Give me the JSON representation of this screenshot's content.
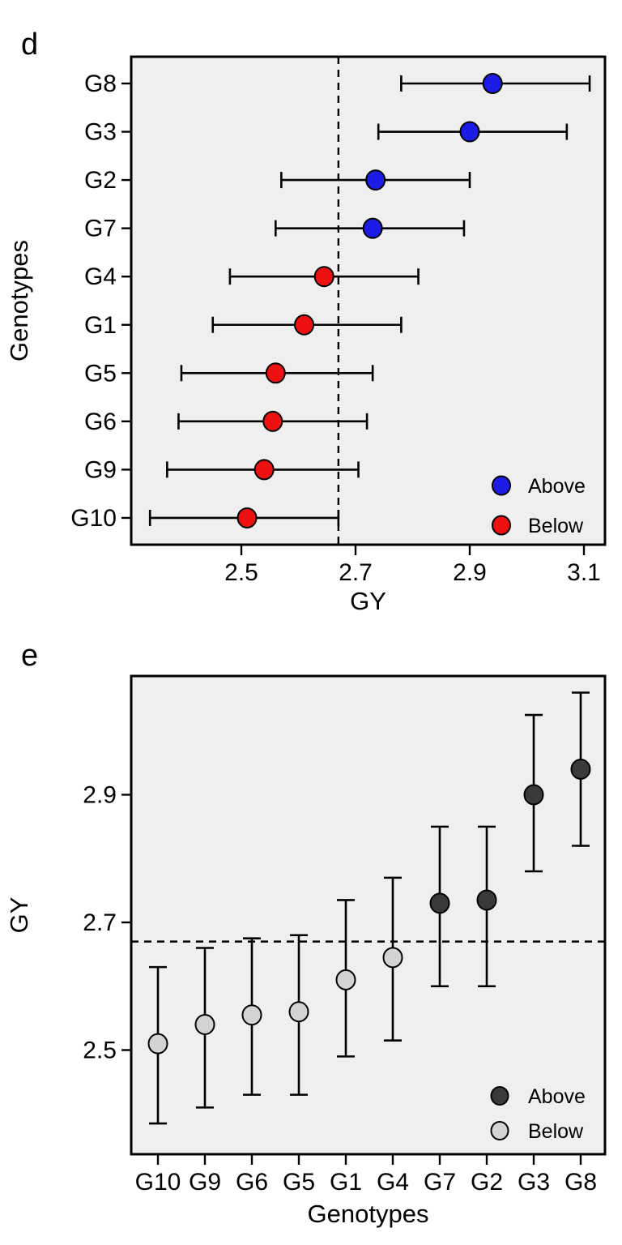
{
  "figure": {
    "panel_d_label": "d",
    "panel_e_label": "e",
    "colors": {
      "panel_background": "#efefef",
      "frame": "#000000",
      "above_panel_d": "#1c1ce6",
      "below_panel_d": "#ee1111",
      "above_panel_e": "#3a3a3a",
      "below_panel_e": "#d3d3d3"
    }
  },
  "chart_data": [
    {
      "panel": "d",
      "type": "scatter",
      "subtype": "dot-whisker error bar plot",
      "orientation": "horizontal",
      "title": "",
      "xlabel": "GY",
      "ylabel": "Genotypes",
      "xlim": [
        2.31,
        3.14
      ],
      "x_ticks": [
        2.5,
        2.7,
        2.9,
        3.1
      ],
      "categories_top_to_bottom": [
        "G8",
        "G3",
        "G2",
        "G7",
        "G4",
        "G1",
        "G5",
        "G6",
        "G9",
        "G10"
      ],
      "reference_line": {
        "value": 2.67,
        "style": "dashed",
        "orientation": "vertical"
      },
      "grid": false,
      "legend_position": "bottom-right inside",
      "legend": [
        {
          "label": "Above",
          "color": "#1c1ce6"
        },
        {
          "label": "Below",
          "color": "#ee1111"
        }
      ],
      "points": [
        {
          "genotype": "G8",
          "mean": 2.94,
          "lower": 2.78,
          "upper": 3.11,
          "group": "Above"
        },
        {
          "genotype": "G3",
          "mean": 2.9,
          "lower": 2.74,
          "upper": 3.07,
          "group": "Above"
        },
        {
          "genotype": "G2",
          "mean": 2.735,
          "lower": 2.57,
          "upper": 2.9,
          "group": "Above"
        },
        {
          "genotype": "G7",
          "mean": 2.73,
          "lower": 2.56,
          "upper": 2.89,
          "group": "Above"
        },
        {
          "genotype": "G4",
          "mean": 2.645,
          "lower": 2.48,
          "upper": 2.81,
          "group": "Below"
        },
        {
          "genotype": "G1",
          "mean": 2.61,
          "lower": 2.45,
          "upper": 2.78,
          "group": "Below"
        },
        {
          "genotype": "G5",
          "mean": 2.56,
          "lower": 2.395,
          "upper": 2.73,
          "group": "Below"
        },
        {
          "genotype": "G6",
          "mean": 2.555,
          "lower": 2.39,
          "upper": 2.72,
          "group": "Below"
        },
        {
          "genotype": "G9",
          "mean": 2.54,
          "lower": 2.37,
          "upper": 2.705,
          "group": "Below"
        },
        {
          "genotype": "G10",
          "mean": 2.51,
          "lower": 2.34,
          "upper": 2.67,
          "group": "Below"
        }
      ]
    },
    {
      "panel": "e",
      "type": "scatter",
      "subtype": "dot-whisker error bar plot",
      "orientation": "vertical",
      "title": "",
      "xlabel": "Genotypes",
      "ylabel": "GY",
      "ylim": [
        2.33,
        3.09
      ],
      "y_ticks": [
        2.5,
        2.7,
        2.9
      ],
      "categories_left_to_right": [
        "G10",
        "G9",
        "G6",
        "G5",
        "G1",
        "G4",
        "G7",
        "G2",
        "G3",
        "G8"
      ],
      "reference_line": {
        "value": 2.67,
        "style": "dashed",
        "orientation": "horizontal"
      },
      "grid": false,
      "legend_position": "bottom-right inside",
      "legend": [
        {
          "label": "Above",
          "color": "#3a3a3a"
        },
        {
          "label": "Below",
          "color": "#d3d3d3"
        }
      ],
      "points": [
        {
          "genotype": "G10",
          "mean": 2.51,
          "lower": 2.385,
          "upper": 2.63,
          "group": "Below"
        },
        {
          "genotype": "G9",
          "mean": 2.54,
          "lower": 2.41,
          "upper": 2.66,
          "group": "Below"
        },
        {
          "genotype": "G6",
          "mean": 2.555,
          "lower": 2.43,
          "upper": 2.675,
          "group": "Below"
        },
        {
          "genotype": "G5",
          "mean": 2.56,
          "lower": 2.43,
          "upper": 2.68,
          "group": "Below"
        },
        {
          "genotype": "G1",
          "mean": 2.61,
          "lower": 2.49,
          "upper": 2.735,
          "group": "Below"
        },
        {
          "genotype": "G4",
          "mean": 2.645,
          "lower": 2.515,
          "upper": 2.77,
          "group": "Below"
        },
        {
          "genotype": "G7",
          "mean": 2.73,
          "lower": 2.6,
          "upper": 2.85,
          "group": "Above"
        },
        {
          "genotype": "G2",
          "mean": 2.735,
          "lower": 2.6,
          "upper": 2.85,
          "group": "Above"
        },
        {
          "genotype": "G3",
          "mean": 2.9,
          "lower": 2.78,
          "upper": 3.025,
          "group": "Above"
        },
        {
          "genotype": "G8",
          "mean": 2.94,
          "lower": 2.82,
          "upper": 3.06,
          "group": "Above"
        }
      ]
    }
  ]
}
